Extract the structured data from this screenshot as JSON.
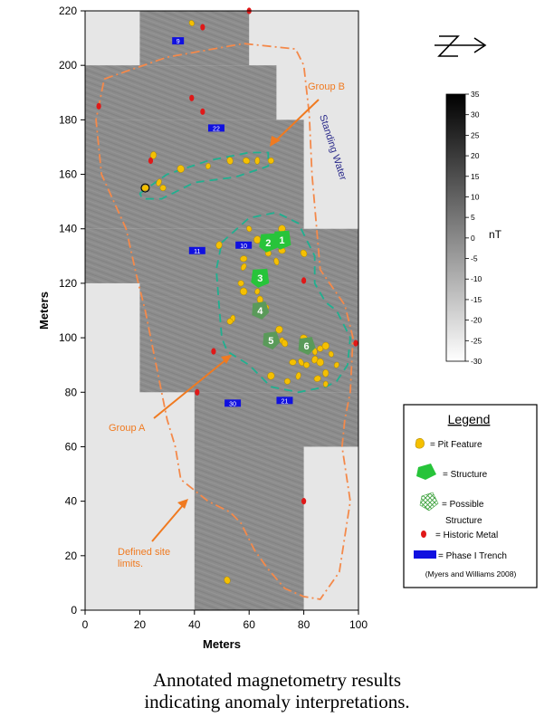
{
  "map": {
    "x_axis": {
      "label": "Meters",
      "range": [
        0,
        100
      ],
      "ticks": [
        0,
        20,
        40,
        60,
        80,
        100
      ]
    },
    "y_axis": {
      "label": "Meters",
      "range": [
        0,
        220
      ],
      "ticks": [
        0,
        20,
        40,
        60,
        80,
        100,
        120,
        140,
        160,
        180,
        200,
        220
      ]
    },
    "survey_blocks": [
      {
        "x": [
          20,
          60
        ],
        "y": [
          200,
          220
        ]
      },
      {
        "x": [
          0,
          70
        ],
        "y": [
          180,
          200
        ]
      },
      {
        "x": [
          0,
          80
        ],
        "y": [
          140,
          180
        ]
      },
      {
        "x": [
          0,
          100
        ],
        "y": [
          120,
          140
        ]
      },
      {
        "x": [
          20,
          100
        ],
        "y": [
          115,
          120
        ]
      },
      {
        "x": [
          20,
          100
        ],
        "y": [
          80,
          115
        ]
      },
      {
        "x": [
          40,
          100
        ],
        "y": [
          60,
          80
        ]
      },
      {
        "x": [
          40,
          80
        ],
        "y": [
          0,
          60
        ]
      }
    ],
    "colors": {
      "survey_background": "#8c8c8c",
      "unsurveyed": "#e6e6e6",
      "pit": "#f5c000",
      "structure": "#27c43a",
      "possible_structure": "#5a9a5a",
      "historic_metal": "#e01818",
      "trench": "#1010e0",
      "group_a_b_lines": "#20b090",
      "site_limits": "#f4894a",
      "annotation": "#f07a20",
      "standing_water_text": "#2a2a8a"
    },
    "pit_features": [
      [
        39,
        215.5
      ],
      [
        25,
        167
      ],
      [
        22,
        155
      ],
      [
        27,
        157
      ],
      [
        28.5,
        155
      ],
      [
        35,
        162
      ],
      [
        45,
        163
      ],
      [
        53,
        165
      ],
      [
        59,
        165
      ],
      [
        63,
        165
      ],
      [
        68,
        165
      ],
      [
        72,
        140
      ],
      [
        74,
        137
      ],
      [
        80,
        131
      ],
      [
        72,
        132
      ],
      [
        70,
        128
      ],
      [
        67,
        131
      ],
      [
        63,
        136
      ],
      [
        60,
        140
      ],
      [
        49,
        134
      ],
      [
        58,
        129
      ],
      [
        58,
        126
      ],
      [
        57,
        120
      ],
      [
        58,
        117
      ],
      [
        63,
        117
      ],
      [
        64,
        114
      ],
      [
        66,
        111
      ],
      [
        54,
        107
      ],
      [
        53,
        106
      ],
      [
        71,
        103
      ],
      [
        72,
        99
      ],
      [
        73,
        98
      ],
      [
        80,
        100
      ],
      [
        84,
        95
      ],
      [
        86,
        96
      ],
      [
        88,
        97
      ],
      [
        90,
        94
      ],
      [
        84,
        92
      ],
      [
        76,
        91
      ],
      [
        79,
        91
      ],
      [
        81,
        90
      ],
      [
        86,
        91
      ],
      [
        92,
        90
      ],
      [
        88,
        87
      ],
      [
        85,
        85
      ],
      [
        78,
        86
      ],
      [
        74,
        84
      ],
      [
        68,
        86
      ],
      [
        88,
        83
      ],
      [
        52,
        11
      ]
    ],
    "structures": [
      {
        "label": "1",
        "x": 72,
        "y": 136
      },
      {
        "label": "2",
        "x": 67,
        "y": 135
      },
      {
        "label": "3",
        "x": 64,
        "y": 122
      }
    ],
    "possible_structures": [
      {
        "label": "4",
        "x": 64,
        "y": 110
      },
      {
        "label": "5",
        "x": 68,
        "y": 99
      },
      {
        "label": "6",
        "x": 81,
        "y": 97
      }
    ],
    "historic_metal": [
      [
        5,
        185
      ],
      [
        24,
        165
      ],
      [
        39,
        188
      ],
      [
        43,
        183
      ],
      [
        43,
        214
      ],
      [
        60,
        220
      ],
      [
        47,
        95
      ],
      [
        41,
        80
      ],
      [
        80,
        121
      ],
      [
        80,
        40
      ],
      [
        99,
        98
      ]
    ],
    "trenches": [
      {
        "label": "9",
        "x": 34,
        "y": 209
      },
      {
        "label": "22",
        "x": 48,
        "y": 177
      },
      {
        "label": "11",
        "x": 41,
        "y": 132
      },
      {
        "label": "10",
        "x": 58,
        "y": 134
      },
      {
        "label": "30",
        "x": 54,
        "y": 76
      },
      {
        "label": "21",
        "x": 73,
        "y": 77
      }
    ],
    "annotations": {
      "group_a": "Group A",
      "group_b": "Group B",
      "site_limits": "Defined site limits.",
      "standing_water": "Standing Water"
    }
  },
  "colorbar": {
    "unit": "nT",
    "range": [
      -30,
      35
    ],
    "ticks": [
      35,
      30,
      25,
      20,
      15,
      10,
      5,
      0,
      -5,
      -10,
      -15,
      -20,
      -25,
      -30
    ]
  },
  "legend": {
    "title": "Legend",
    "items": [
      {
        "label": "= Pit Feature"
      },
      {
        "label": "= Structure"
      },
      {
        "label": "= Possible Structure"
      },
      {
        "label": "= Historic Metal"
      },
      {
        "label": "= Phase I Trench"
      }
    ],
    "citation": "(Myers and Williams 2008)"
  },
  "caption": {
    "line1": "Annotated magnetometry results",
    "line2": "indicating anomaly interpretations."
  }
}
